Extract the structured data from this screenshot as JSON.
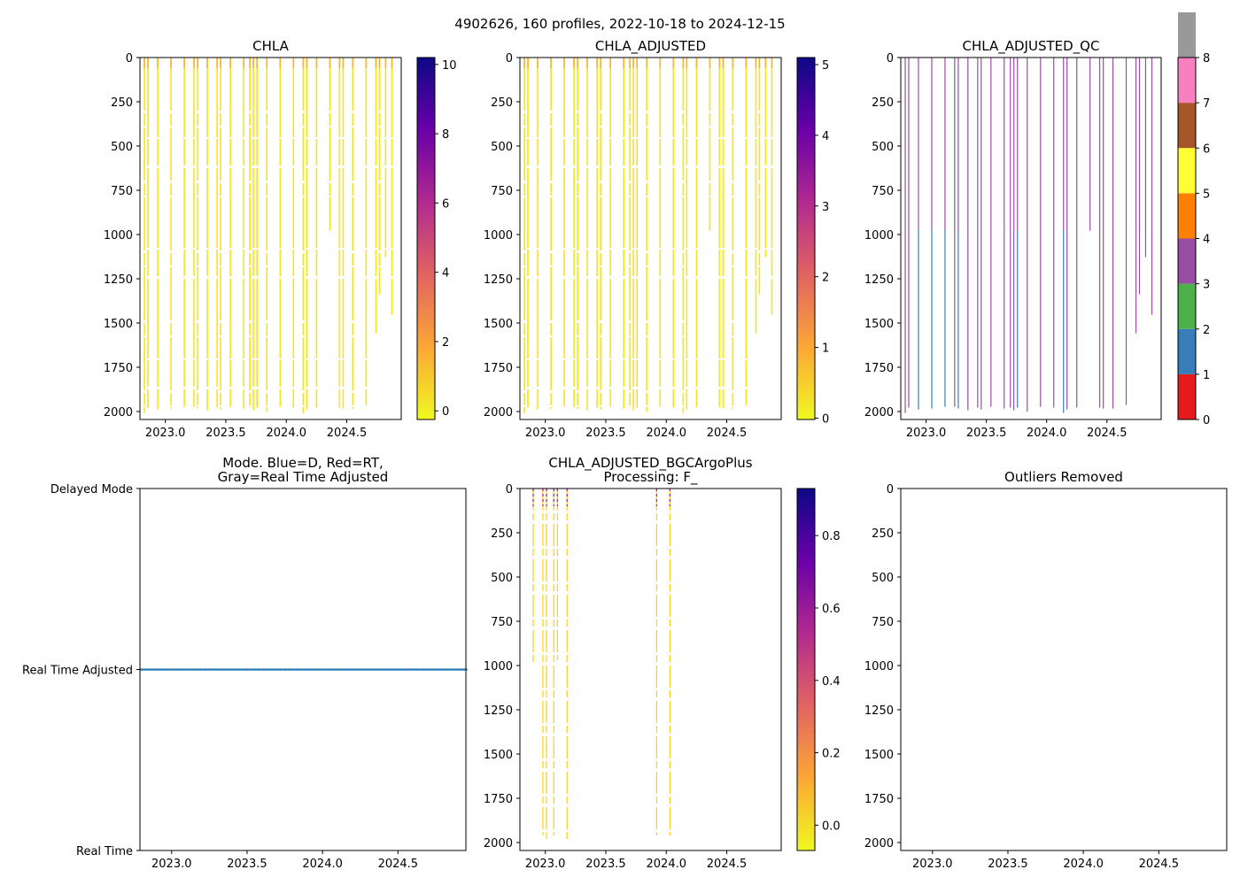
{
  "chart_data": {
    "type": "heatmap",
    "suptitle": "4902626, 160 profiles, 2022-10-18 to 2024-12-15",
    "xlim": [
      2022.79,
      2024.95
    ],
    "xticks": [
      "2023.0",
      "2023.5",
      "2024.0",
      "2024.5"
    ],
    "xtick_values": [
      2023.0,
      2023.5,
      2024.0,
      2024.5
    ],
    "ylim": [
      2045,
      0
    ],
    "depth_ticks": [
      0,
      250,
      500,
      750,
      1000,
      1250,
      1500,
      1750,
      2000
    ],
    "profiles": [
      {
        "t": 2022.827,
        "max_depth": 2008,
        "deep_qc": 3
      },
      {
        "t": 2022.856,
        "max_depth": 1978,
        "deep_qc": 3
      },
      {
        "t": 2022.937,
        "max_depth": 1988,
        "deep_qc": 1
      },
      {
        "t": 2023.047,
        "max_depth": 1983,
        "deep_qc": 1
      },
      {
        "t": 2023.157,
        "max_depth": 1973,
        "deep_qc": 1
      },
      {
        "t": 2023.237,
        "max_depth": 1973,
        "deep_qc": 3
      },
      {
        "t": 2023.267,
        "max_depth": 1983,
        "deep_qc": 1
      },
      {
        "t": 2023.347,
        "max_depth": 1993,
        "deep_qc": 3
      },
      {
        "t": 2023.428,
        "max_depth": 1978,
        "deep_qc": 3
      },
      {
        "t": 2023.457,
        "max_depth": 1988,
        "deep_qc": 3
      },
      {
        "t": 2023.538,
        "max_depth": 1973,
        "deep_qc": 3
      },
      {
        "t": 2023.648,
        "max_depth": 1983,
        "deep_qc": 3
      },
      {
        "t": 2023.699,
        "max_depth": 1978,
        "deep_qc": 3
      },
      {
        "t": 2023.728,
        "max_depth": 1993,
        "deep_qc": 3
      },
      {
        "t": 2023.758,
        "max_depth": 1978,
        "deep_qc": 1
      },
      {
        "t": 2023.839,
        "max_depth": 2000,
        "deep_qc": 3
      },
      {
        "t": 2023.949,
        "max_depth": 1973,
        "deep_qc": 3
      },
      {
        "t": 2024.059,
        "max_depth": 1978,
        "deep_qc": 3
      },
      {
        "t": 2024.14,
        "max_depth": 2008,
        "deep_qc": 1
      },
      {
        "t": 2024.169,
        "max_depth": 1988,
        "deep_qc": 3
      },
      {
        "t": 2024.25,
        "max_depth": 1978,
        "deep_qc": 3
      },
      {
        "t": 2024.36,
        "max_depth": 978,
        "deep_qc": 3
      },
      {
        "t": 2024.44,
        "max_depth": 1978,
        "deep_qc": 3
      },
      {
        "t": 2024.47,
        "max_depth": 1983,
        "deep_qc": 3
      },
      {
        "t": 2024.55,
        "max_depth": 1983,
        "deep_qc": 3
      },
      {
        "t": 2024.66,
        "max_depth": 1963,
        "deep_qc": 3
      },
      {
        "t": 2024.741,
        "max_depth": 1558,
        "deep_qc": 3
      },
      {
        "t": 2024.77,
        "max_depth": 1338,
        "deep_qc": 3
      },
      {
        "t": 2024.821,
        "max_depth": 1128,
        "deep_qc": 3
      },
      {
        "t": 2024.873,
        "max_depth": 1453,
        "deep_qc": 3
      }
    ],
    "panels": [
      {
        "id": "chla",
        "title": [
          "CHLA"
        ],
        "colormap": "plasma",
        "colorbar_ticks": [
          "0",
          "2",
          "4",
          "6",
          "8",
          "10"
        ],
        "colorbar_values": [
          0,
          2,
          4,
          6,
          8,
          10
        ],
        "clim": [
          -0.25,
          10.2
        ]
      },
      {
        "id": "chla-adjusted",
        "title": [
          "CHLA_ADJUSTED"
        ],
        "colormap": "plasma",
        "colorbar_ticks": [
          "0",
          "1",
          "2",
          "3",
          "4",
          "5"
        ],
        "colorbar_values": [
          0,
          1,
          2,
          3,
          4,
          5
        ],
        "clim": [
          -0.02,
          5.1
        ]
      },
      {
        "id": "chla-adjusted-qc",
        "title": [
          "CHLA_ADJUSTED_QC"
        ],
        "colormap": "Set1",
        "colorbar_ticks": [
          "0",
          "1",
          "2",
          "3",
          "4",
          "5",
          "6",
          "7",
          "8"
        ],
        "colorbar_values": [
          0,
          1,
          2,
          3,
          4,
          5,
          6,
          7,
          8
        ],
        "clim": [
          0,
          8
        ],
        "qc_colors": [
          "#e41a1c",
          "#377eb8",
          "#4daf4a",
          "#984ea3",
          "#ff7f00",
          "#ffff33",
          "#a65628",
          "#f781bf",
          "#999999"
        ]
      },
      {
        "id": "mode",
        "title": [
          "Mode. Blue=D, Red=RT,",
          "Gray=Real Time Adjusted"
        ],
        "ytick_labels": [
          "Delayed Mode",
          "Real Time Adjusted",
          "Real Time"
        ],
        "mode_value": "Real Time Adjusted",
        "n_profiles": 160,
        "point_color": "#1f77b4"
      },
      {
        "id": "bgcargoplus",
        "title": [
          "CHLA_ADJUSTED_BGCArgoPlus",
          "Processing: F_"
        ],
        "colormap": "plasma",
        "colorbar_ticks": [
          "0.0",
          "0.2",
          "0.4",
          "0.6",
          "0.8"
        ],
        "colorbar_values": [
          0,
          0.2,
          0.4,
          0.6,
          0.8
        ],
        "clim": [
          -0.07,
          0.93
        ],
        "profiles_shown": [
          {
            "t": 2022.9,
            "max_depth": 1000
          },
          {
            "t": 2022.98,
            "max_depth": 1960
          },
          {
            "t": 2023.01,
            "max_depth": 2000
          },
          {
            "t": 2023.07,
            "max_depth": 1960
          },
          {
            "t": 2023.1,
            "max_depth": 970
          },
          {
            "t": 2023.18,
            "max_depth": 1990
          },
          {
            "t": 2023.92,
            "max_depth": 1960
          },
          {
            "t": 2024.03,
            "max_depth": 1960
          }
        ]
      },
      {
        "id": "outliers",
        "title": [
          "Outliers Removed"
        ]
      }
    ]
  }
}
